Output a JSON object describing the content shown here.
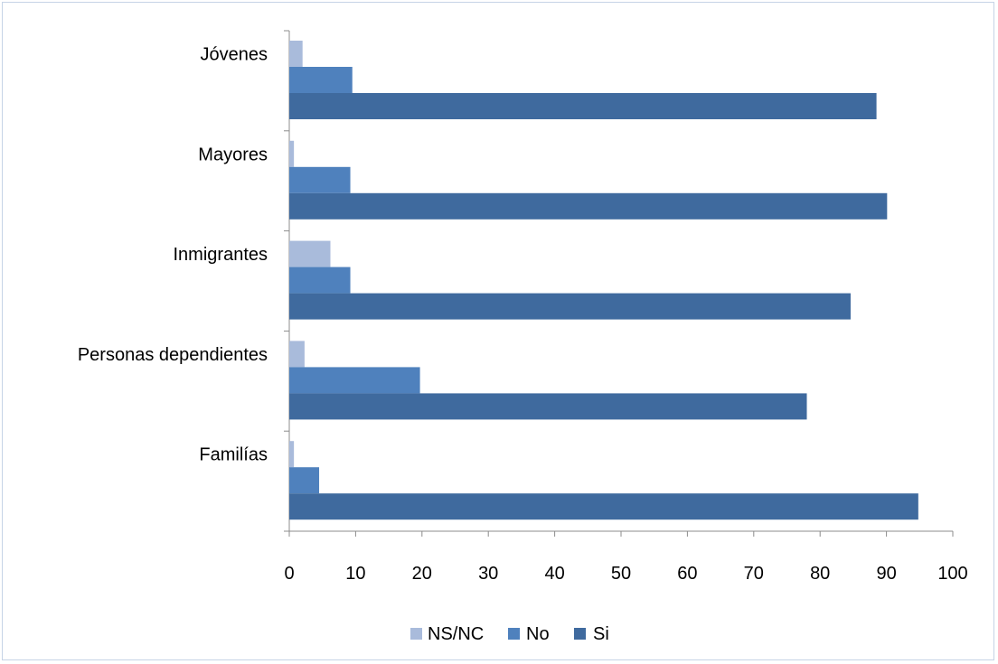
{
  "chart_data": {
    "type": "bar",
    "orientation": "horizontal",
    "categories": [
      "Jóvenes",
      "Mayores",
      "Inmigrantes",
      "Personas dependientes",
      "Familías"
    ],
    "series": [
      {
        "name": "NS/NC",
        "color": "#a9bbdb",
        "values": [
          2,
          0.7,
          6.2,
          2.3,
          0.7
        ]
      },
      {
        "name": "No",
        "color": "#4f81bd",
        "values": [
          9.5,
          9.2,
          9.2,
          19.7,
          4.5
        ]
      },
      {
        "name": "Si",
        "color": "#3f6a9e",
        "values": [
          88.5,
          90.1,
          84.6,
          78,
          94.8
        ]
      }
    ],
    "xlim": [
      0,
      100
    ],
    "xticks": [
      "0",
      "10",
      "20",
      "30",
      "40",
      "50",
      "60",
      "70",
      "80",
      "90",
      "100"
    ],
    "title": "",
    "xlabel": "",
    "ylabel": "",
    "grid": false,
    "legend_position": "bottom"
  }
}
